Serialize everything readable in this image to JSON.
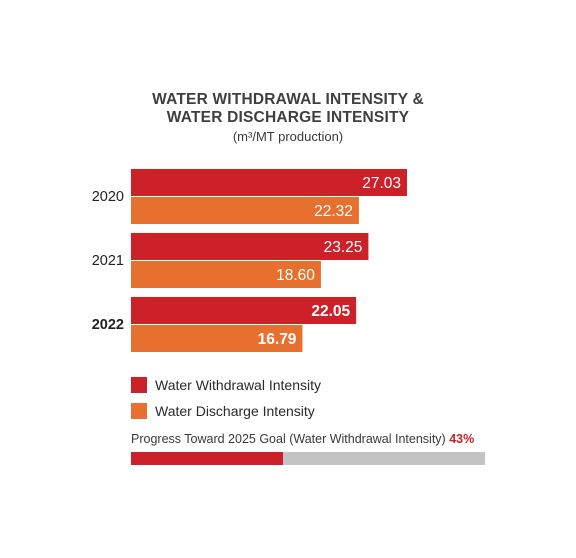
{
  "chart_data": {
    "type": "bar",
    "orientation": "horizontal",
    "title_line1": "WATER WITHDRAWAL INTENSITY &",
    "title_line2": "WATER DISCHARGE INTENSITY",
    "subtitle": "(m³/MT production)",
    "categories": [
      "2020",
      "2021",
      "2022"
    ],
    "series": [
      {
        "name": "Water Withdrawal Intensity",
        "color": "#cc2129",
        "values": [
          27.03,
          23.25,
          22.05
        ],
        "labels": [
          "27.03",
          "23.25",
          "22.05"
        ]
      },
      {
        "name": "Water Discharge Intensity",
        "color": "#e8702e",
        "values": [
          22.32,
          18.6,
          16.79
        ],
        "labels": [
          "22.32",
          "18.60",
          "16.79"
        ]
      }
    ],
    "xlim": [
      0,
      27.03
    ],
    "legend_position": "bottom-left",
    "grid": false
  },
  "progress": {
    "label": "Progress Toward 2025 Goal (Water Withdrawal Intensity)",
    "percent_label": "43%",
    "value": 0.43,
    "fill_color": "#cc2129",
    "track_color": "#c4c4c4"
  }
}
